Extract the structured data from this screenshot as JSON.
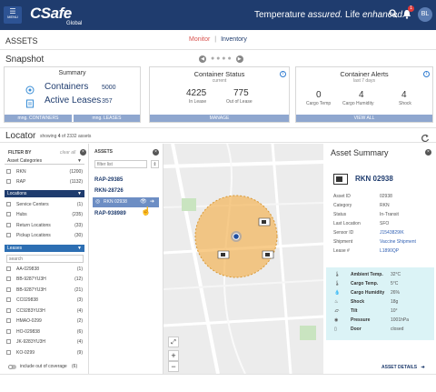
{
  "header": {
    "menu_label": "MENU",
    "brand": "CSafe",
    "brand_sub": "Global",
    "tagline_1": "Temperature ",
    "tagline_2": "assured.",
    "tagline_3": " Life ",
    "tagline_4": "enhanced.",
    "notification_count": "1",
    "user_initials": "BL"
  },
  "page": {
    "title": "ASSETS",
    "nav_monitor": "Monitor",
    "nav_separator": "|",
    "nav_inventory": "Inventory"
  },
  "snapshot": {
    "title": "Snapshot",
    "summary": {
      "title": "Summary",
      "containers_label": "Containers",
      "containers_value": "5000",
      "leases_label": "Active Leases",
      "leases_value": "357",
      "btn_containers": "mng. CONTAINERS",
      "btn_leases": "mng. LEASES"
    },
    "container_status": {
      "title": "Container Status",
      "subtitle": "current",
      "in_lease_value": "4225",
      "in_lease_label": "In Lease",
      "out_lease_value": "775",
      "out_lease_label": "Out of Lease",
      "btn_manage": "MANAGE"
    },
    "container_alerts": {
      "title": "Container Alerts",
      "subtitle": "last 7 days",
      "cargo_temp_value": "0",
      "cargo_temp_label": "Cargo Temp",
      "cargo_humidity_value": "4",
      "cargo_humidity_label": "Cargo Humidity",
      "shock_value": "4",
      "shock_label": "Shock",
      "btn_view_all": "VIEW ALL"
    }
  },
  "locator": {
    "title": "Locator",
    "showing_prefix": "showing ",
    "showing_count": "4",
    "showing_suffix": " of 2332 assets"
  },
  "filters": {
    "header": "FILTER BY",
    "clear_all": "clear all",
    "asset_categories_label": "Asset Categories",
    "categories": [
      {
        "label": "RKN",
        "count": "(1200)"
      },
      {
        "label": "RAP",
        "count": "(1132)"
      }
    ],
    "locations_label": "Locations",
    "locations": [
      {
        "label": "Service Centers",
        "count": "(1)"
      },
      {
        "label": "Hubs",
        "count": "(235)"
      },
      {
        "label": "Return Locations",
        "count": "(33)"
      },
      {
        "label": "Pickup Locations",
        "count": "(30)"
      }
    ],
    "leases_label": "Leases",
    "lease_search_placeholder": "search",
    "leases": [
      {
        "label": "AA-029838",
        "count": "(1)"
      },
      {
        "label": "BB-9287YU3H",
        "count": "(12)"
      },
      {
        "label": "BB-9287YU3H",
        "count": "(21)"
      },
      {
        "label": "CC029838",
        "count": "(3)"
      },
      {
        "label": "CC9283YU3H",
        "count": "(4)"
      },
      {
        "label": "HMAO-0299",
        "count": "(2)"
      },
      {
        "label": "HO-029838",
        "count": "(6)"
      },
      {
        "label": "JK-9283YU3H",
        "count": "(4)"
      },
      {
        "label": "KO-0299",
        "count": "(9)"
      }
    ],
    "include_out_of_coverage": "include out of coverage",
    "out_of_coverage_count": "(6)"
  },
  "assets_list": {
    "header": "ASSETS",
    "filter_placeholder": "filter list",
    "items": [
      "RAP-29385",
      "RKN-28726",
      "RKN 02938",
      "RAP-938989"
    ],
    "selected_index": 2
  },
  "asset_summary": {
    "title": "Asset Summary",
    "name": "RKN 02938",
    "fields": [
      {
        "label": "Asset ID",
        "value": "02938"
      },
      {
        "label": "Category",
        "value": "RKN"
      },
      {
        "label": "Status",
        "value": "In-Transit"
      },
      {
        "label": "Last Location",
        "value": "SFO"
      },
      {
        "label": "Sensor ID",
        "value": "J1543829IK"
      },
      {
        "label": "Shipment",
        "value": "Vaccine Shipment"
      },
      {
        "label": "Lease #",
        "value": "L1890QP"
      }
    ],
    "sensors": [
      {
        "label": "Ambient Temp.",
        "value": "32°C"
      },
      {
        "label": "Cargo Temp.",
        "value": "5°C"
      },
      {
        "label": "Cargo Humidity",
        "value": "26%"
      },
      {
        "label": "Shock",
        "value": "18g"
      },
      {
        "label": "Tilt",
        "value": "10°"
      },
      {
        "label": "Pressure",
        "value": "1001hPa"
      },
      {
        "label": "Door",
        "value": "closed"
      }
    ],
    "details_link": "ASSET DETAILS",
    "accent_color": "#1f3c6e",
    "link_color": "#2f5fb3",
    "sensor_bg": "#dbf3f6"
  },
  "map": {
    "zoom_in": "+",
    "zoom_out": "−",
    "radius_color": "#f5b14d"
  }
}
